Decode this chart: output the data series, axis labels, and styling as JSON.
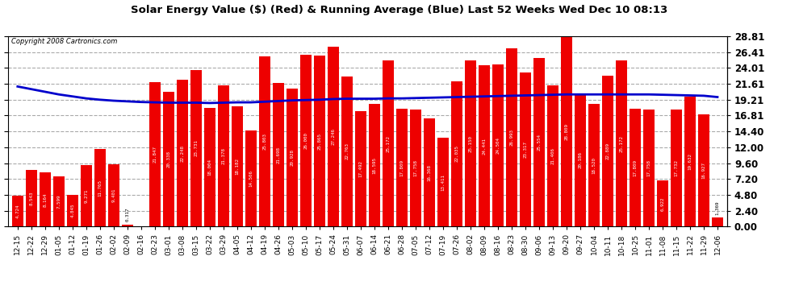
{
  "title": "Solar Energy Value ($) (Red) & Running Average (Blue) Last 52 Weeks Wed Dec 10 08:13",
  "copyright": "Copyright 2008 Cartronics.com",
  "bar_color": "#ee0000",
  "line_color": "#0000cc",
  "plot_bg": "#ffffff",
  "fig_bg": "#ffffff",
  "grid_color": "#aaaaaa",
  "ylim": [
    0.0,
    28.81
  ],
  "yticks": [
    0.0,
    2.4,
    4.8,
    7.2,
    9.6,
    12.0,
    14.4,
    16.81,
    19.21,
    21.61,
    24.01,
    26.41,
    28.81
  ],
  "categories": [
    "12-15",
    "12-22",
    "12-29",
    "01-05",
    "01-12",
    "01-19",
    "01-26",
    "02-02",
    "02-09",
    "02-16",
    "02-23",
    "03-01",
    "03-08",
    "03-15",
    "03-22",
    "03-29",
    "04-05",
    "04-12",
    "04-19",
    "04-26",
    "05-03",
    "05-10",
    "05-17",
    "05-24",
    "05-31",
    "06-07",
    "06-14",
    "06-21",
    "06-28",
    "07-05",
    "07-12",
    "07-19",
    "07-26",
    "08-02",
    "08-09",
    "08-16",
    "08-23",
    "08-30",
    "09-06",
    "09-13",
    "09-20",
    "09-27",
    "10-04",
    "10-11",
    "10-18",
    "10-25",
    "11-01",
    "11-08",
    "11-15",
    "11-22",
    "11-29",
    "12-06"
  ],
  "values": [
    4.724,
    8.543,
    8.164,
    7.599,
    4.845,
    9.271,
    11.765,
    9.401,
    0.317,
    0.0,
    21.847,
    20.338,
    22.248,
    23.731,
    18.004,
    21.378,
    18.182,
    14.506,
    25.803,
    21.698,
    20.928,
    26.0,
    25.865,
    27.246,
    22.763,
    17.492,
    18.595,
    25.172,
    17.809,
    17.758,
    16.368,
    13.411,
    22.035,
    25.15,
    24.441,
    24.504,
    26.993,
    23.317,
    25.554,
    21.406,
    28.809,
    20.186,
    18.52,
    22.889,
    25.172,
    17.809,
    17.758,
    6.922,
    17.732,
    19.632,
    16.927,
    1.369
  ],
  "running_avg": [
    21.2,
    20.8,
    20.4,
    20.0,
    19.7,
    19.4,
    19.2,
    19.05,
    18.95,
    18.85,
    18.8,
    18.75,
    18.75,
    18.75,
    18.7,
    18.75,
    18.8,
    18.8,
    18.9,
    19.0,
    19.1,
    19.15,
    19.2,
    19.3,
    19.35,
    19.35,
    19.35,
    19.4,
    19.4,
    19.45,
    19.5,
    19.55,
    19.6,
    19.65,
    19.7,
    19.75,
    19.8,
    19.85,
    19.9,
    19.95,
    20.0,
    20.0,
    20.0,
    20.0,
    20.0,
    20.0,
    20.0,
    19.95,
    19.9,
    19.85,
    19.8,
    19.6
  ]
}
